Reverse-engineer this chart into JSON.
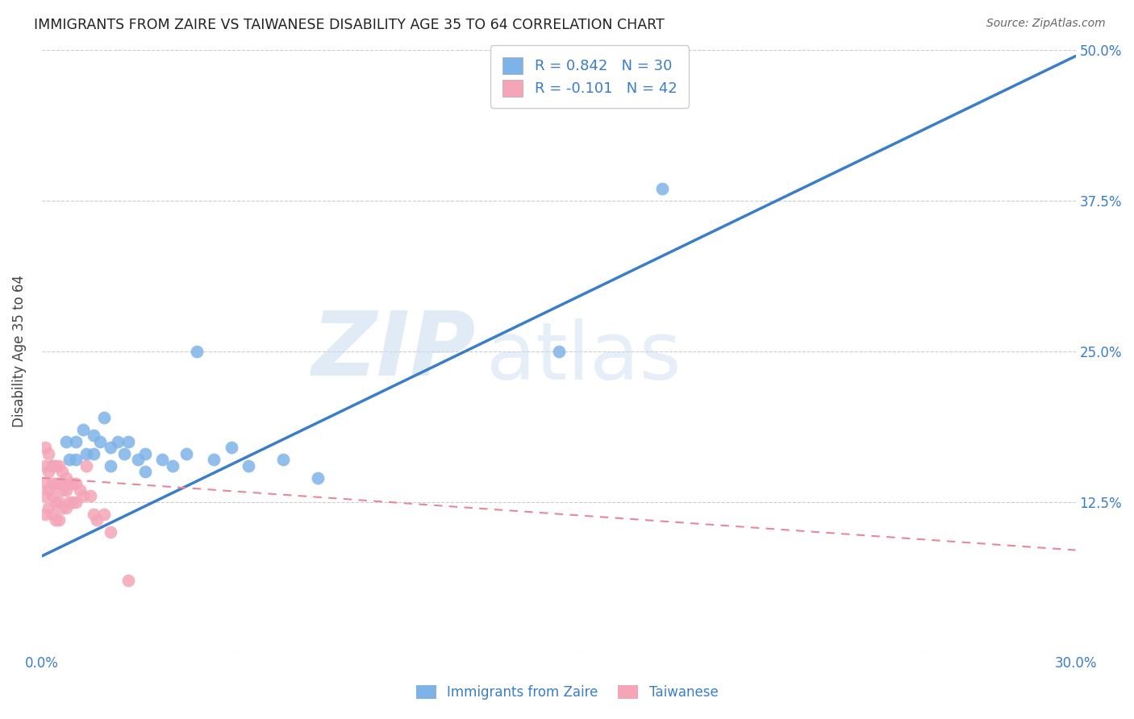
{
  "title": "IMMIGRANTS FROM ZAIRE VS TAIWANESE DISABILITY AGE 35 TO 64 CORRELATION CHART",
  "source": "Source: ZipAtlas.com",
  "ylabel": "Disability Age 35 to 64",
  "xlabel_blue": "Immigrants from Zaire",
  "xlabel_pink": "Taiwanese",
  "xlim": [
    0.0,
    0.3
  ],
  "ylim": [
    0.0,
    0.5
  ],
  "xticks": [
    0.0,
    0.05,
    0.1,
    0.15,
    0.2,
    0.25,
    0.3
  ],
  "yticks": [
    0.0,
    0.125,
    0.25,
    0.375,
    0.5
  ],
  "R_blue": 0.842,
  "N_blue": 30,
  "R_pink": -0.101,
  "N_pink": 42,
  "color_blue": "#7EB3E8",
  "color_pink": "#F4A6B8",
  "line_blue": "#3A7DC9",
  "line_pink": "#E8879A",
  "watermark_zip": "ZIP",
  "watermark_atlas": "atlas",
  "blue_points_x": [
    0.003,
    0.007,
    0.008,
    0.01,
    0.01,
    0.012,
    0.013,
    0.015,
    0.015,
    0.017,
    0.018,
    0.02,
    0.02,
    0.022,
    0.024,
    0.025,
    0.028,
    0.03,
    0.03,
    0.035,
    0.038,
    0.042,
    0.045,
    0.05,
    0.055,
    0.06,
    0.07,
    0.08,
    0.15,
    0.18
  ],
  "blue_points_y": [
    0.155,
    0.175,
    0.16,
    0.175,
    0.16,
    0.185,
    0.165,
    0.18,
    0.165,
    0.175,
    0.195,
    0.17,
    0.155,
    0.175,
    0.165,
    0.175,
    0.16,
    0.165,
    0.15,
    0.16,
    0.155,
    0.165,
    0.25,
    0.16,
    0.17,
    0.155,
    0.16,
    0.145,
    0.25,
    0.385
  ],
  "pink_points_x": [
    0.001,
    0.001,
    0.001,
    0.001,
    0.001,
    0.002,
    0.002,
    0.002,
    0.002,
    0.003,
    0.003,
    0.003,
    0.003,
    0.004,
    0.004,
    0.004,
    0.004,
    0.005,
    0.005,
    0.005,
    0.005,
    0.006,
    0.006,
    0.006,
    0.007,
    0.007,
    0.007,
    0.008,
    0.008,
    0.009,
    0.009,
    0.01,
    0.01,
    0.011,
    0.012,
    0.013,
    0.014,
    0.015,
    0.016,
    0.018,
    0.02,
    0.025
  ],
  "pink_points_y": [
    0.17,
    0.155,
    0.14,
    0.13,
    0.115,
    0.165,
    0.15,
    0.135,
    0.12,
    0.155,
    0.14,
    0.13,
    0.115,
    0.155,
    0.14,
    0.125,
    0.11,
    0.155,
    0.14,
    0.125,
    0.11,
    0.15,
    0.135,
    0.12,
    0.145,
    0.135,
    0.12,
    0.14,
    0.125,
    0.14,
    0.125,
    0.14,
    0.125,
    0.135,
    0.13,
    0.155,
    0.13,
    0.115,
    0.11,
    0.115,
    0.1,
    0.06
  ],
  "blue_line_x": [
    0.0,
    0.3
  ],
  "blue_line_y": [
    0.08,
    0.495
  ],
  "pink_line_x": [
    0.0,
    0.3
  ],
  "pink_line_y": [
    0.145,
    0.085
  ]
}
